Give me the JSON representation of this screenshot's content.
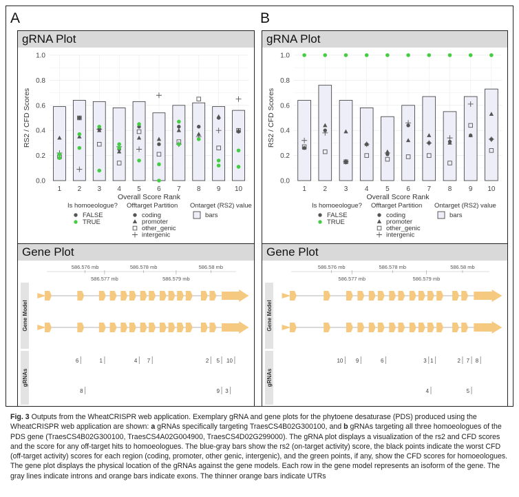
{
  "panels": [
    {
      "letter": "A",
      "grna_title": "gRNA Plot",
      "gene_title": "Gene Plot",
      "chart_data": {
        "type": "bar",
        "ylabel": "RS2 / CFD Scores",
        "xlabel": "Overall Score Rank",
        "ylim": [
          0,
          1.0
        ],
        "yticks": [
          "0.0",
          "0.2",
          "0.4",
          "0.6",
          "0.8",
          "1.0"
        ],
        "categories": [
          "1",
          "2",
          "3",
          "4",
          "5",
          "6",
          "7",
          "8",
          "9",
          "10"
        ],
        "bars": [
          0.59,
          0.64,
          0.63,
          0.58,
          0.63,
          0.54,
          0.6,
          0.62,
          0.59,
          0.56
        ],
        "points": {
          "coding": [
            0.21,
            0.5,
            0.41,
            0.25,
            0.43,
            0.29,
            0.43,
            0.43,
            0.5,
            0.39
          ],
          "promoter": [
            0.34,
            0.35,
            0.4,
            0.23,
            0.34,
            0.33,
            0.4,
            0.37,
            0.51,
            0.4
          ],
          "other_genic": [
            0.19,
            0.5,
            0.29,
            0.14,
            0.39,
            0.21,
            0.31,
            0.65,
            0.26,
            0.4
          ],
          "intergenic": [
            0.22,
            0.09,
            0.41,
            0.27,
            0.25,
            0.68,
            0.29,
            0.35,
            0.4,
            0.65
          ],
          "homoeologue": [
            [
              0.18,
              0.21
            ],
            [
              0.26,
              0.37
            ],
            [
              0.08,
              0.43
            ],
            [
              0.26,
              0.29
            ],
            [
              0.16,
              0.45
            ],
            [
              0.0,
              0.13
            ],
            [
              0.29,
              0.47
            ],
            [
              0.33
            ],
            [
              0.12,
              0.16
            ],
            [
              0.11,
              0.24
            ]
          ]
        }
      },
      "gene": {
        "axis_top": [
          "586.576 mb",
          "586.578 mb",
          "586.58 mb"
        ],
        "axis_bottom": [
          "586.577 mb",
          "586.579 mb"
        ],
        "track_model": "Gene Model",
        "track_grnas": "gRNAs",
        "grna_row1": [
          "6",
          "1",
          "4",
          "7",
          "2",
          "5",
          "10"
        ],
        "grna_row2": [
          "8",
          "9",
          "3"
        ]
      }
    },
    {
      "letter": "B",
      "grna_title": "gRNA Plot",
      "gene_title": "Gene Plot",
      "chart_data": {
        "type": "bar",
        "ylabel": "RS2 / CFD Scores",
        "xlabel": "Overall Score Rank",
        "ylim": [
          0,
          1.0
        ],
        "yticks": [
          "0.0",
          "0.2",
          "0.4",
          "0.6",
          "0.8",
          "1.0"
        ],
        "categories": [
          "1",
          "2",
          "3",
          "4",
          "5",
          "6",
          "7",
          "8",
          "9",
          "10"
        ],
        "bars": [
          0.64,
          0.76,
          0.64,
          0.58,
          0.51,
          0.6,
          0.67,
          0.55,
          0.67,
          0.73
        ],
        "points": {
          "coding": [
            0.26,
            0.4,
            0.15,
            0.29,
            0.21,
            0.44,
            0.3,
            0.31,
            0.36,
            0.33
          ],
          "promoter": [
            0.26,
            0.44,
            0.39,
            0.29,
            0.23,
            0.32,
            0.36,
            0.3,
            0.36,
            0.53
          ],
          "other_genic": [
            0.27,
            0.23,
            0.15,
            0.2,
            0.17,
            0.19,
            0.2,
            0.14,
            0.44,
            0.24
          ],
          "intergenic": [
            0.32,
            0.38,
            0.15,
            0.29,
            0.22,
            0.46,
            0.3,
            0.34,
            0.61,
            0.33
          ],
          "homoeologue": [
            [
              1.0
            ],
            [
              1.0
            ],
            [
              1.0
            ],
            [
              1.0
            ],
            [
              1.0
            ],
            [
              1.0
            ],
            [
              1.0
            ],
            [
              1.0
            ],
            [
              1.0
            ],
            [
              1.0
            ]
          ]
        }
      },
      "gene": {
        "axis_top": [
          "586.576 mb",
          "586.578 mb",
          "586.58 mb"
        ],
        "axis_bottom": [
          "586.577 mb",
          "586.579 mb"
        ],
        "track_model": "Gene Model",
        "track_grnas": "gRNAs",
        "grna_row1": [
          "10",
          "9",
          "6",
          "3",
          "1",
          "2",
          "7",
          "8"
        ],
        "grna_row2": [
          "4",
          "5"
        ]
      }
    }
  ],
  "legend": {
    "homoeologue_title": "Is homoeologue?",
    "homoeologue_items": [
      "FALSE",
      "TRUE"
    ],
    "partition_title": "Offtarget Partition",
    "partition_items": [
      "coding",
      "promoter",
      "other_genic",
      "intergenic"
    ],
    "ontarget_title": "Ontarget (RS2) value",
    "ontarget_item": "bars"
  },
  "colors": {
    "bar_fill": "#eeeef8",
    "green": "#44cc44",
    "exon": "#f6c980",
    "intron": "#9a9a9a",
    "point": "#555555"
  },
  "caption": {
    "fig": "Fig. 3",
    "t1": " Outputs from the WheatCRISPR web application. Exemplary gRNA and gene plots for the phytoene desaturase (PDS) produced using the WheatCRISPR web application are shown: ",
    "a": "a",
    "t2": " gRNAs specifically targeting TraesCS4B02G300100, and ",
    "b": "b",
    "t3": " gRNAs targeting all three homoeologues of the PDS gene (TraesCS4B02G300100, TraesCS4A02G004900, TraesCS4D02G299000). The gRNA plot displays a visualization of the rs2 and CFD scores and the score for any off-target hits to homoeologues. The blue-gray bars show the rs2 (on-target activity) score, the black points indicate the worst CFD (off-target activity) scores for each region (coding, promoter, other genic, intergenic), and the green points, if any, show the CFD scores for homoeologues. The gene plot displays the physical location of the gRNAs against the gene models. Each row in the gene model represents an isoform of the gene. The gray lines indicate introns and orange bars indicate exons. The thinner orange bars indicate UTRs"
  }
}
